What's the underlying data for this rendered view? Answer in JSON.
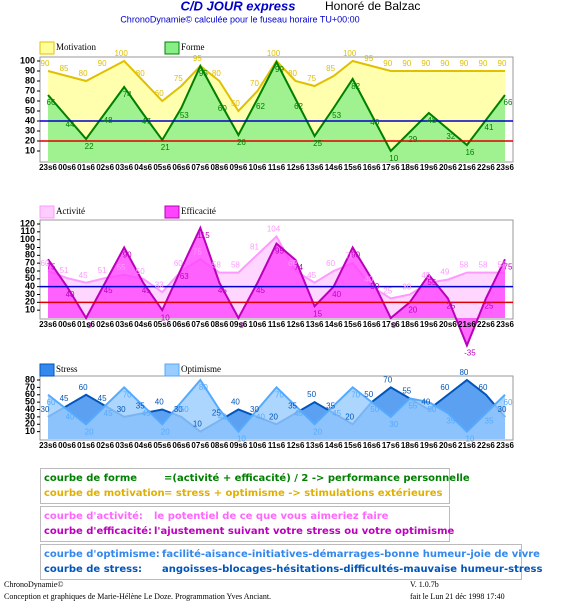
{
  "header": {
    "title": "C/D JOUR express",
    "author": "Honoré de Balzac",
    "subtitle": "ChronoDynamie© calculée pour le fuseau horaire TU+00:00"
  },
  "chart_data": [
    {
      "type": "area",
      "categories": [
        "23s6",
        "00s6",
        "01s6",
        "02s6",
        "03s6",
        "04s6",
        "05s6",
        "06s6",
        "07s6",
        "08s6",
        "09s6",
        "10s6",
        "11s6",
        "12s6",
        "13s6",
        "14s6",
        "15s6",
        "16s6",
        "17s6",
        "18s6",
        "19s6",
        "20s6",
        "21s6",
        "22s6",
        "23s6"
      ],
      "series": [
        {
          "name": "Motivation",
          "color": "#e0c000",
          "fill": "#ffff99",
          "values": [
            90,
            85,
            80,
            90,
            100,
            80,
            60,
            75,
            95,
            80,
            50,
            70,
            100,
            80,
            75,
            85,
            100,
            95,
            90,
            90,
            90,
            90,
            90,
            90,
            90
          ]
        },
        {
          "name": "Forme",
          "color": "#008000",
          "fill": "#88ee88",
          "values": [
            66,
            44,
            22,
            48,
            74,
            47,
            21,
            53,
            95,
            60,
            26,
            62,
            99,
            62,
            25,
            53,
            82,
            46,
            10,
            29,
            48,
            32,
            16,
            41,
            66
          ]
        }
      ],
      "ylim": [
        0,
        100
      ],
      "yticks": [
        10,
        20,
        30,
        40,
        50,
        60,
        70,
        80,
        90,
        100
      ],
      "hlines": [
        {
          "value": 40,
          "color": "#0000cc"
        },
        {
          "value": 20,
          "color": "#dd0000"
        }
      ]
    },
    {
      "type": "area",
      "categories": [
        "23s6",
        "00s6",
        "01s6",
        "02s6",
        "03s6",
        "04s6",
        "05s6",
        "06s6",
        "07s6",
        "08s6",
        "09s6",
        "10s6",
        "11s6",
        "12s6",
        "13s6",
        "14s6",
        "15s6",
        "16s6",
        "17s6",
        "18s6",
        "19s6",
        "20s6",
        "21s6",
        "22s6",
        "23s6"
      ],
      "series": [
        {
          "name": "Activité",
          "color": "#ff99ff",
          "fill": "#ffccff",
          "values": [
            60,
            51,
            45,
            51,
            55,
            50,
            33,
            60,
            75,
            58,
            58,
            81,
            104,
            60,
            45,
            60,
            70,
            40,
            25,
            30,
            45,
            49,
            58,
            58,
            58
          ]
        },
        {
          "name": "Efficacité",
          "color": "#bb00bb",
          "fill": "#ff44ff",
          "values": [
            75,
            40,
            0,
            45,
            90,
            45,
            10,
            63,
            115,
            45,
            0,
            45,
            95,
            74,
            15,
            40,
            90,
            50,
            0,
            20,
            55,
            25,
            -35,
            25,
            75
          ]
        }
      ],
      "ylim": [
        0,
        120
      ],
      "yticks": [
        10,
        20,
        30,
        40,
        50,
        60,
        70,
        80,
        90,
        100,
        110,
        120
      ],
      "hlines": [
        {
          "value": 40,
          "color": "#0000cc"
        },
        {
          "value": 20,
          "color": "#dd0000"
        }
      ]
    },
    {
      "type": "area",
      "categories": [
        "23s6",
        "00s6",
        "01s6",
        "02s6",
        "03s6",
        "04s6",
        "05s6",
        "06s6",
        "07s6",
        "08s6",
        "09s6",
        "10s6",
        "11s6",
        "12s6",
        "13s6",
        "14s6",
        "15s6",
        "16s6",
        "17s6",
        "18s6",
        "19s6",
        "20s6",
        "21s6",
        "22s6",
        "23s6"
      ],
      "series": [
        {
          "name": "Stress",
          "color": "#0055bb",
          "fill": "#3388ee",
          "values": [
            30,
            45,
            60,
            45,
            30,
            35,
            40,
            30,
            10,
            25,
            40,
            30,
            20,
            35,
            50,
            35,
            20,
            50,
            70,
            55,
            40,
            60,
            80,
            60,
            30
          ]
        },
        {
          "name": "Optimisme",
          "color": "#55aaff",
          "fill": "#99ccff",
          "values": [
            60,
            40,
            20,
            45,
            70,
            45,
            20,
            50,
            80,
            40,
            10,
            40,
            70,
            45,
            20,
            45,
            70,
            50,
            30,
            55,
            50,
            35,
            10,
            35,
            60
          ]
        }
      ],
      "ylim": [
        0,
        80
      ],
      "yticks": [
        10,
        20,
        30,
        40,
        50,
        60,
        70,
        80
      ]
    }
  ],
  "notes": [
    [
      {
        "label": "courbe de forme",
        "text": "=(activité + efficacité) / 2  -> performance personnelle"
      },
      {
        "label": "courbe de motivation",
        "text": "= stress + optimisme          -> stimulations extérieures"
      }
    ],
    [
      {
        "label": "courbe d'activité:",
        "text": "le potentiel de ce que vous aimeriez faire"
      },
      {
        "label": "courbe d'efficacité:",
        "text": "l'ajustement suivant votre stress ou votre optimisme"
      }
    ],
    [
      {
        "label": "courbe d'optimisme:",
        "text": "facilité-aisance-initiatives-démarrages-bonne humeur-joie de vivre"
      },
      {
        "label": "courbe de stress:",
        "text": "angoisses-blocages-hésitations-difficultés-mauvaise humeur-stress"
      }
    ]
  ],
  "footer": {
    "brand": "ChronoDynamie©",
    "credits": "Conception et graphiques de Marie-Hélène Le Doze. Programmation Yves Anciant.",
    "version": "V. 1.0.7b",
    "date": "fait le Lun 21 déc 1998 17:40"
  }
}
